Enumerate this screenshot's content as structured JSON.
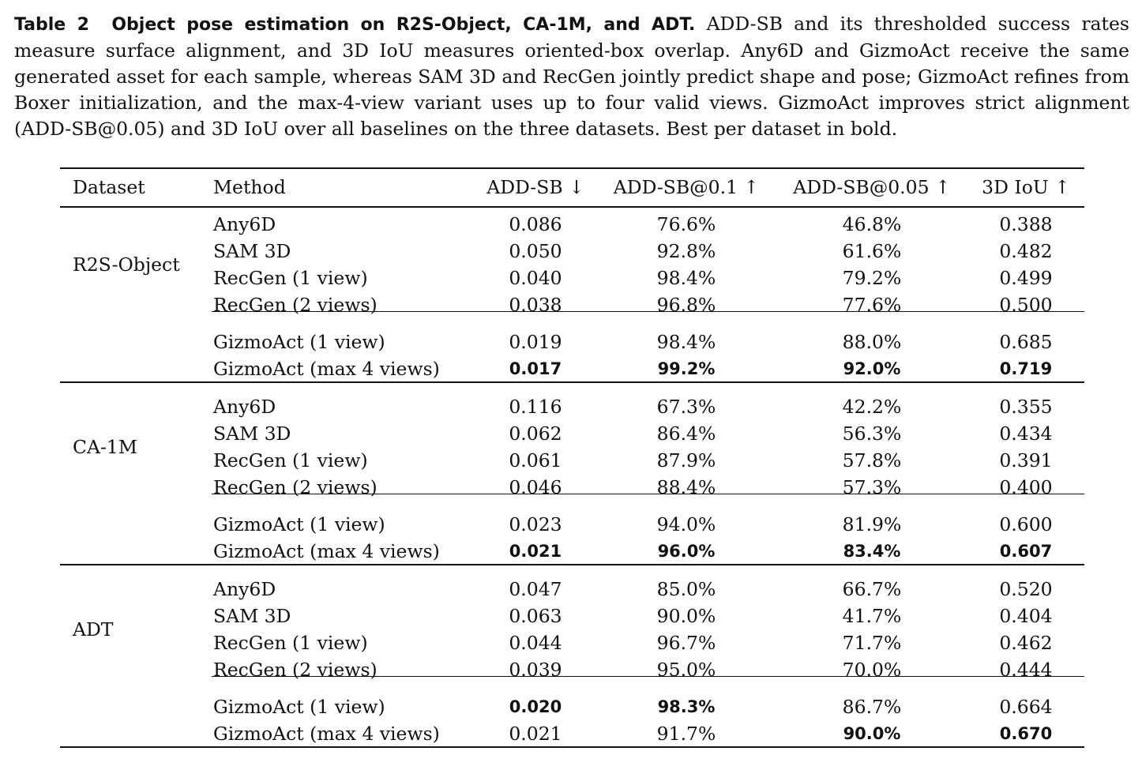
{
  "caption": {
    "label": "Table 2",
    "title": "Object pose estimation on R2S-Object, CA-1M, and ADT.",
    "text": "ADD-SB and its thresholded success rates measure surface alignment, and 3D IoU measures oriented-box overlap. Any6D and GizmoAct receive the same generated asset for each sample, whereas SAM 3D and RecGen jointly predict shape and pose; GizmoAct refines from Boxer initialization, and the max-4-view variant uses up to four valid views. GizmoAct improves strict alignment (ADD-SB@0.05) and 3D IoU over all baselines on the three datasets. Best per dataset in bold."
  },
  "table": {
    "headers": [
      "Dataset",
      "Method",
      "ADD-SB ↓",
      "ADD-SB@0.1 ↑",
      "ADD-SB@0.05 ↑",
      "3D IoU ↑"
    ],
    "groups": [
      {
        "dataset": "R2S-Object",
        "rows": [
          {
            "method": "Any6D",
            "values": [
              "0.086",
              "76.6%",
              "46.8%",
              "0.388"
            ],
            "bold": [
              false,
              false,
              false,
              false
            ]
          },
          {
            "method": "SAM 3D",
            "values": [
              "0.050",
              "92.8%",
              "61.6%",
              "0.482"
            ],
            "bold": [
              false,
              false,
              false,
              false
            ]
          },
          {
            "method": "RecGen (1 view)",
            "values": [
              "0.040",
              "98.4%",
              "79.2%",
              "0.499"
            ],
            "bold": [
              false,
              false,
              false,
              false
            ]
          },
          {
            "method": "RecGen (2 views)",
            "values": [
              "0.038",
              "96.8%",
              "77.6%",
              "0.500"
            ],
            "bold": [
              false,
              false,
              false,
              false
            ]
          },
          {
            "method": "GizmoAct (1 view)",
            "values": [
              "0.019",
              "98.4%",
              "88.0%",
              "0.685"
            ],
            "bold": [
              false,
              false,
              false,
              false
            ]
          },
          {
            "method": "GizmoAct (max 4 views)",
            "values": [
              "0.017",
              "99.2%",
              "92.0%",
              "0.719"
            ],
            "bold": [
              true,
              true,
              true,
              true
            ]
          }
        ]
      },
      {
        "dataset": "CA-1M",
        "rows": [
          {
            "method": "Any6D",
            "values": [
              "0.116",
              "67.3%",
              "42.2%",
              "0.355"
            ],
            "bold": [
              false,
              false,
              false,
              false
            ]
          },
          {
            "method": "SAM 3D",
            "values": [
              "0.062",
              "86.4%",
              "56.3%",
              "0.434"
            ],
            "bold": [
              false,
              false,
              false,
              false
            ]
          },
          {
            "method": "RecGen (1 view)",
            "values": [
              "0.061",
              "87.9%",
              "57.8%",
              "0.391"
            ],
            "bold": [
              false,
              false,
              false,
              false
            ]
          },
          {
            "method": "RecGen (2 views)",
            "values": [
              "0.046",
              "88.4%",
              "57.3%",
              "0.400"
            ],
            "bold": [
              false,
              false,
              false,
              false
            ]
          },
          {
            "method": "GizmoAct (1 view)",
            "values": [
              "0.023",
              "94.0%",
              "81.9%",
              "0.600"
            ],
            "bold": [
              false,
              false,
              false,
              false
            ]
          },
          {
            "method": "GizmoAct (max 4 views)",
            "values": [
              "0.021",
              "96.0%",
              "83.4%",
              "0.607"
            ],
            "bold": [
              true,
              true,
              true,
              true
            ]
          }
        ]
      },
      {
        "dataset": "ADT",
        "rows": [
          {
            "method": "Any6D",
            "values": [
              "0.047",
              "85.0%",
              "66.7%",
              "0.520"
            ],
            "bold": [
              false,
              false,
              false,
              false
            ]
          },
          {
            "method": "SAM 3D",
            "values": [
              "0.063",
              "90.0%",
              "41.7%",
              "0.404"
            ],
            "bold": [
              false,
              false,
              false,
              false
            ]
          },
          {
            "method": "RecGen (1 view)",
            "values": [
              "0.044",
              "96.7%",
              "71.7%",
              "0.462"
            ],
            "bold": [
              false,
              false,
              false,
              false
            ]
          },
          {
            "method": "RecGen (2 views)",
            "values": [
              "0.039",
              "95.0%",
              "70.0%",
              "0.444"
            ],
            "bold": [
              false,
              false,
              false,
              false
            ]
          },
          {
            "method": "GizmoAct (1 view)",
            "values": [
              "0.020",
              "98.3%",
              "86.7%",
              "0.664"
            ],
            "bold": [
              true,
              true,
              false,
              false
            ]
          },
          {
            "method": "GizmoAct (max 4 views)",
            "values": [
              "0.021",
              "91.7%",
              "90.0%",
              "0.670"
            ],
            "bold": [
              false,
              false,
              true,
              true
            ]
          }
        ]
      }
    ]
  }
}
